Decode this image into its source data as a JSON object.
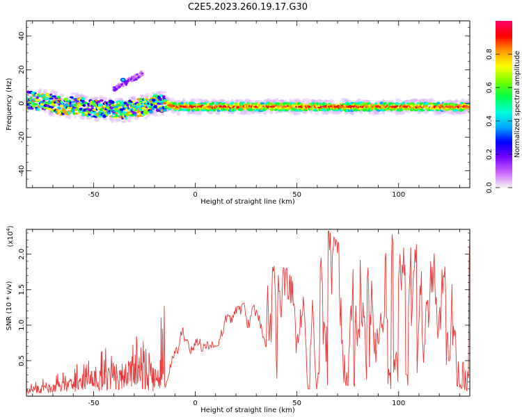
{
  "title": "C2E5.2023.260.19.17.G30",
  "chart_data": [
    {
      "type": "heatmap",
      "xlabel": "Height of straight line (km)",
      "ylabel": "Frequency (Hz)",
      "xlim": [
        -83,
        135
      ],
      "ylim": [
        -50,
        49
      ],
      "xticks": [
        -50,
        0,
        50,
        100
      ],
      "yticks": [
        40,
        20,
        0,
        -20,
        -40
      ],
      "colorbar": {
        "label": "Normalized spectral amplitude",
        "range": [
          0,
          1
        ],
        "ticks": [
          "0.0",
          "0.2",
          "0.4",
          "0.6",
          "0.8"
        ],
        "tick_values": [
          0,
          0.2,
          0.4,
          0.6,
          0.8
        ],
        "colors": [
          "#f2f2f2",
          "#cc66ff",
          "#7700ff",
          "#0000ff",
          "#00aaff",
          "#00ffdd",
          "#00ff44",
          "#77ff00",
          "#ffff00",
          "#ff9900",
          "#ff0000",
          "#ff0066"
        ]
      },
      "band_track": [
        [
          -83,
          2
        ],
        [
          -75,
          1
        ],
        [
          -70,
          0
        ],
        [
          -65,
          -2
        ],
        [
          -60,
          -1
        ],
        [
          -55,
          -2
        ],
        [
          -50,
          -3
        ],
        [
          -45,
          -3
        ],
        [
          -40,
          -4
        ],
        [
          -35,
          -4
        ],
        [
          -30,
          -3
        ],
        [
          -25,
          -2
        ],
        [
          -20,
          0
        ],
        [
          -15,
          0
        ],
        [
          -10,
          -2
        ],
        [
          0,
          -2
        ],
        [
          20,
          -2
        ],
        [
          40,
          -2
        ],
        [
          60,
          -2
        ],
        [
          80,
          -2
        ],
        [
          100,
          -2
        ],
        [
          120,
          -2
        ],
        [
          135,
          -2
        ]
      ],
      "secondary_track": [
        [
          -40,
          8
        ],
        [
          -35,
          12
        ],
        [
          -30,
          15
        ],
        [
          -26,
          18
        ]
      ]
    },
    {
      "type": "line",
      "xlabel": "Height of straight line (km)",
      "ylabel": "SNR (10 * v/v)",
      "multiplier_label": "(x10",
      "multiplier_exponent": "4",
      "multiplier_close": ")",
      "xlim": [
        -83,
        135
      ],
      "ylim": [
        0,
        2.35
      ],
      "xticks": [
        -50,
        0,
        50,
        100
      ],
      "yticks": [
        0.5,
        1.0,
        1.5,
        2.0
      ],
      "ytick_labels": [
        "0.5",
        "1.0",
        "1.5",
        "2.0"
      ],
      "line_color": "#ee3333",
      "envelope": [
        {
          "x": -83,
          "lo": 0.03,
          "hi": 0.22
        },
        {
          "x": -70,
          "lo": 0.05,
          "hi": 0.28
        },
        {
          "x": -60,
          "lo": 0.05,
          "hi": 0.45
        },
        {
          "x": -50,
          "lo": 0.08,
          "hi": 0.6
        },
        {
          "x": -40,
          "lo": 0.05,
          "hi": 0.75
        },
        {
          "x": -30,
          "lo": 0.1,
          "hi": 0.85
        },
        {
          "x": -20,
          "lo": 0.05,
          "hi": 0.8
        },
        {
          "x": -15,
          "lo": 0.1,
          "hi": 1.43
        },
        {
          "x": -10,
          "lo": 0.6,
          "hi": 0.95
        },
        {
          "x": 0,
          "lo": 0.6,
          "hi": 1.0
        },
        {
          "x": 10,
          "lo": 0.7,
          "hi": 1.05
        },
        {
          "x": 20,
          "lo": 0.8,
          "hi": 1.25
        },
        {
          "x": 30,
          "lo": 0.9,
          "hi": 1.4
        },
        {
          "x": 36,
          "lo": 0.2,
          "hi": 1.85
        },
        {
          "x": 45,
          "lo": 0.3,
          "hi": 1.8
        },
        {
          "x": 55,
          "lo": 0.1,
          "hi": 2.1
        },
        {
          "x": 65,
          "lo": 0.1,
          "hi": 2.35
        },
        {
          "x": 75,
          "lo": 0.15,
          "hi": 2.0
        },
        {
          "x": 85,
          "lo": 0.1,
          "hi": 1.9
        },
        {
          "x": 95,
          "lo": 0.1,
          "hi": 2.3
        },
        {
          "x": 105,
          "lo": 0.15,
          "hi": 2.2
        },
        {
          "x": 115,
          "lo": 0.1,
          "hi": 2.05
        },
        {
          "x": 125,
          "lo": 0.2,
          "hi": 1.9
        },
        {
          "x": 135,
          "lo": 0.05,
          "hi": 2.2
        }
      ]
    }
  ]
}
